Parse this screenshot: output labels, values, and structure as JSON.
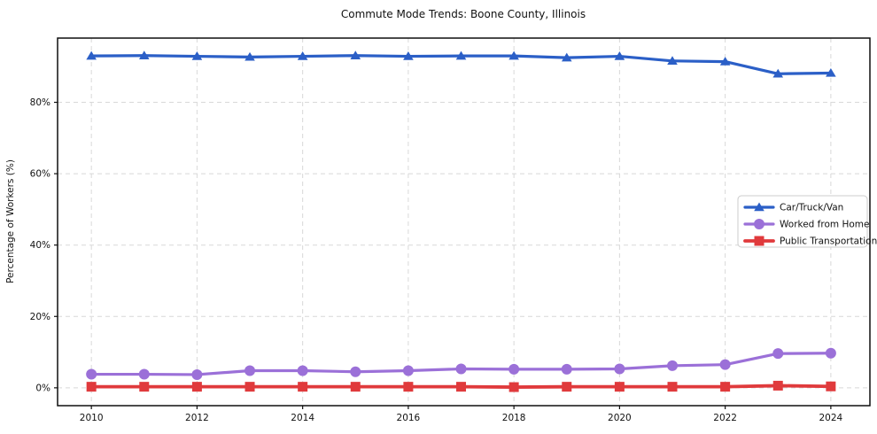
{
  "title": "Commute Mode Trends: Boone County, Illinois",
  "chart_data": {
    "type": "line",
    "title": "Commute Mode Trends: Boone County, Illinois",
    "xlabel": "",
    "ylabel": "Percentage of Workers (%)",
    "x": [
      2010,
      2011,
      2012,
      2013,
      2014,
      2015,
      2016,
      2017,
      2018,
      2019,
      2020,
      2021,
      2022,
      2023,
      2024
    ],
    "x_ticks": [
      2010,
      2012,
      2014,
      2016,
      2018,
      2020,
      2022,
      2024
    ],
    "x_tick_labels": [
      "2010",
      "2012",
      "2014",
      "2016",
      "2018",
      "2020",
      "2022",
      "2024"
    ],
    "y_ticks": [
      0,
      20,
      40,
      60,
      80
    ],
    "y_tick_labels": [
      "0%",
      "20%",
      "40%",
      "60%",
      "80%"
    ],
    "xlim": [
      2009.36,
      2024.74
    ],
    "ylim": [
      -5,
      98
    ],
    "grid": true,
    "grid_style": "dashed",
    "grid_color": "#d8d8d8",
    "legend_position": "center-right",
    "series": [
      {
        "name": "Car/Truck/Van",
        "color": "#2b5fc7",
        "marker": "triangle",
        "values": [
          93.0,
          93.1,
          92.9,
          92.7,
          92.9,
          93.1,
          92.9,
          93.0,
          93.0,
          92.5,
          92.9,
          91.6,
          91.4,
          88.0,
          88.2
        ]
      },
      {
        "name": "Worked from Home",
        "color": "#9b70d8",
        "marker": "circle",
        "values": [
          3.8,
          3.8,
          3.7,
          4.8,
          4.8,
          4.5,
          4.8,
          5.3,
          5.2,
          5.2,
          5.3,
          6.2,
          6.5,
          9.6,
          9.7
        ]
      },
      {
        "name": "Public Transportation",
        "color": "#e03a3c",
        "marker": "square",
        "values": [
          0.3,
          0.3,
          0.3,
          0.3,
          0.3,
          0.3,
          0.3,
          0.3,
          0.2,
          0.3,
          0.3,
          0.3,
          0.3,
          0.6,
          0.4
        ]
      }
    ]
  }
}
